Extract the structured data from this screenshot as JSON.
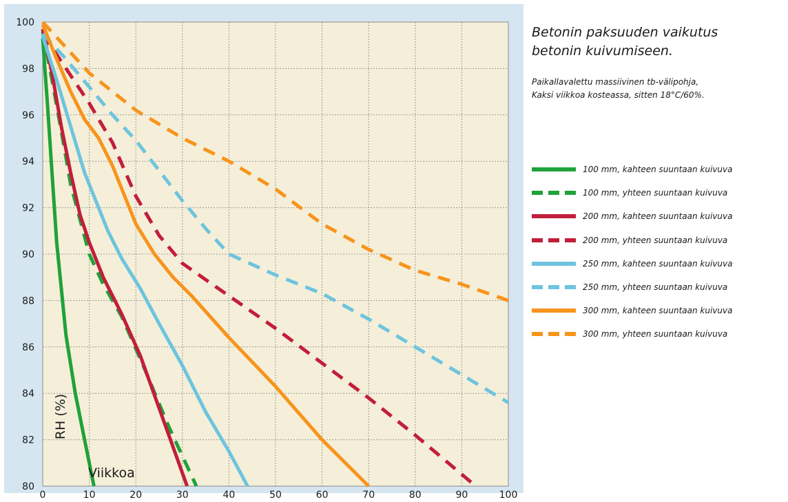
{
  "title": "Betonin paksuuden vaikutus\nbetonin kuivumiseen.",
  "subtitle": "Paikallavalettu massiivinen tb-välipohja,\nKaksi viikkoa kosteassa, sitten 18°C/60%.",
  "chart_data": {
    "type": "line",
    "title": "Betonin paksuuden vaikutus betonin kuivumiseen.",
    "xlabel": "Viikkoa",
    "ylabel": "RH (%)",
    "xlim": [
      0,
      100
    ],
    "ylim": [
      80,
      100
    ],
    "xticks": [
      "0",
      "10",
      "20",
      "30",
      "40",
      "50",
      "60",
      "70",
      "80",
      "90",
      "100"
    ],
    "yticks": [
      "80",
      "82",
      "84",
      "86",
      "88",
      "90",
      "92",
      "94",
      "96",
      "98",
      "100"
    ],
    "grid": true,
    "legend_position": "right",
    "series": [
      {
        "name": "100 mm, kahteen suuntaan kuivuva",
        "color": "#1fa23a",
        "dash": "solid",
        "x": [
          0,
          1,
          2,
          3,
          5,
          7,
          9,
          11
        ],
        "y": [
          99.3,
          96.5,
          93.5,
          90.5,
          86.5,
          84.0,
          82.0,
          80.0
        ]
      },
      {
        "name": "100 mm, yhteen suuntaan kuivuva",
        "color": "#1fa23a",
        "dash": "dashed",
        "x": [
          0,
          2,
          4,
          6,
          8,
          10,
          13,
          17,
          22,
          27,
          33
        ],
        "y": [
          99.6,
          97.5,
          95.3,
          93.0,
          91.5,
          90.0,
          88.7,
          87.3,
          85.0,
          82.6,
          80.0
        ]
      },
      {
        "name": "200 mm, kahteen suuntaan kuivuva",
        "color": "#c21e3b",
        "dash": "solid",
        "x": [
          0,
          2,
          4,
          6,
          8,
          10,
          13,
          17,
          21,
          26,
          31
        ],
        "y": [
          99.7,
          97.8,
          95.5,
          93.5,
          91.7,
          90.5,
          89.0,
          87.4,
          85.6,
          82.8,
          80.0
        ]
      },
      {
        "name": "200 mm, yhteen suuntaan kuivuva",
        "color": "#c21e3b",
        "dash": "dashed",
        "x": [
          0,
          5,
          10,
          15,
          20,
          25,
          30,
          40,
          50,
          60,
          70,
          80,
          93
        ],
        "y": [
          99.5,
          98.0,
          96.5,
          94.8,
          92.5,
          90.8,
          89.6,
          88.2,
          86.8,
          85.3,
          83.8,
          82.2,
          80.0
        ]
      },
      {
        "name": "250 mm, kahteen suuntaan kuivuva",
        "color": "#6ec4de",
        "dash": "solid",
        "x": [
          0,
          3,
          6,
          9,
          12,
          14,
          17,
          21,
          25,
          30,
          35,
          40,
          44
        ],
        "y": [
          99.4,
          97.5,
          95.5,
          93.5,
          92.0,
          91.0,
          89.8,
          88.5,
          87.0,
          85.2,
          83.2,
          81.5,
          80.0
        ]
      },
      {
        "name": "250 mm, yhteen suuntaan kuivuva",
        "color": "#6ec4de",
        "dash": "dashed",
        "x": [
          0,
          5,
          10,
          15,
          20,
          25,
          30,
          35,
          40,
          50,
          60,
          70,
          80,
          90,
          100
        ],
        "y": [
          99.5,
          98.4,
          97.2,
          96.0,
          94.9,
          93.6,
          92.3,
          91.1,
          90.0,
          89.1,
          88.3,
          87.2,
          86.0,
          84.8,
          83.6
        ]
      },
      {
        "name": "300 mm, kahteen suuntaan kuivuva",
        "color": "#f7941d",
        "dash": "solid",
        "x": [
          0,
          3,
          6,
          9,
          12,
          15,
          18,
          20,
          24,
          28,
          32,
          40,
          50,
          60,
          70
        ],
        "y": [
          99.9,
          98.4,
          97.0,
          95.8,
          95.0,
          93.8,
          92.3,
          91.3,
          90.0,
          89.0,
          88.2,
          86.4,
          84.3,
          82.0,
          80.0
        ]
      },
      {
        "name": "300 mm, yhteen suuntaan kuivuva",
        "color": "#f7941d",
        "dash": "dashed",
        "x": [
          0,
          10,
          20,
          30,
          40,
          50,
          60,
          70,
          80,
          90,
          100
        ],
        "y": [
          100.0,
          97.8,
          96.2,
          95.0,
          94.0,
          92.8,
          91.3,
          90.2,
          89.3,
          88.7,
          88.0
        ]
      }
    ]
  }
}
